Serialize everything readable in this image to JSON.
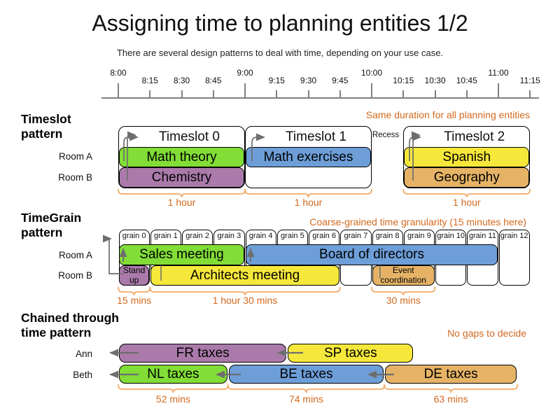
{
  "title": "Assigning time to planning entities 1/2",
  "subtitle": "There are several design patterns to deal with time, depending on your use case.",
  "colors": {
    "green": "#82dd36",
    "blue": "#6d9ed8",
    "yellow": "#f6e83b",
    "purple": "#aa7aaa",
    "tan": "#e6b366",
    "annotation": "#d2691e",
    "brace": "#f2a965",
    "arrow": "#6e6e6e",
    "axis": "#808080"
  },
  "axis": {
    "ticks": [
      {
        "label": "8:00",
        "min": 0,
        "major": true
      },
      {
        "label": "8:15",
        "min": 15,
        "major": false
      },
      {
        "label": "8:30",
        "min": 30,
        "major": false
      },
      {
        "label": "8:45",
        "min": 45,
        "major": false
      },
      {
        "label": "9:00",
        "min": 60,
        "major": true
      },
      {
        "label": "9:15",
        "min": 75,
        "major": false
      },
      {
        "label": "9:30",
        "min": 90,
        "major": false
      },
      {
        "label": "9:45",
        "min": 105,
        "major": false
      },
      {
        "label": "10:00",
        "min": 120,
        "major": true
      },
      {
        "label": "10:15",
        "min": 135,
        "major": false
      },
      {
        "label": "10:30",
        "min": 150,
        "major": false
      },
      {
        "label": "10:45",
        "min": 165,
        "major": false
      },
      {
        "label": "11:00",
        "min": 180,
        "major": true
      },
      {
        "label": "11:15",
        "min": 195,
        "major": false
      }
    ]
  },
  "sections": {
    "timeslot": {
      "heading_lines": [
        "Timeslot",
        "pattern"
      ],
      "annotation": "Same duration for all planning entities",
      "rows": [
        "Room A",
        "Room B"
      ],
      "recess_label": "Recess",
      "slots": [
        {
          "label": "Timeslot 0",
          "start": 0,
          "minutes": 60
        },
        {
          "label": "Timeslot 1",
          "start": 60,
          "minutes": 60
        },
        {
          "label": "Timeslot 2",
          "start": 135,
          "minutes": 60
        }
      ],
      "events": [
        {
          "label": "Math theory",
          "row": 0,
          "start": 0,
          "minutes": 60,
          "color": "green"
        },
        {
          "label": "Math exercises",
          "row": 0,
          "start": 60,
          "minutes": 60,
          "color": "blue"
        },
        {
          "label": "Spanish",
          "row": 0,
          "start": 135,
          "minutes": 60,
          "color": "yellow"
        },
        {
          "label": "Chemistry",
          "row": 1,
          "start": 0,
          "minutes": 60,
          "color": "purple"
        },
        {
          "label": "Geography",
          "row": 1,
          "start": 135,
          "minutes": 60,
          "color": "tan"
        }
      ],
      "durations": [
        {
          "label": "1 hour",
          "start": 0,
          "minutes": 60
        },
        {
          "label": "1 hour",
          "start": 60,
          "minutes": 60
        },
        {
          "label": "1 hour",
          "start": 135,
          "minutes": 60
        }
      ]
    },
    "timegrain": {
      "heading_lines": [
        "TimeGrain",
        "pattern"
      ],
      "annotation": "Coarse-grained time granularity (15 minutes here)",
      "rows": [
        "Room A",
        "Room B"
      ],
      "grains": [
        "grain 0",
        "grain 1",
        "grain 2",
        "grain 3",
        "grain 4",
        "grain 5",
        "grain 6",
        "grain 7",
        "grain 8",
        "grain 9",
        "grain 10",
        "grain 11",
        "grain 12"
      ],
      "events": [
        {
          "label": "Sales meeting",
          "row": 0,
          "start": 0,
          "minutes": 60,
          "color": "green"
        },
        {
          "label": "Board of directors",
          "row": 0,
          "start": 60,
          "minutes": 120,
          "color": "blue"
        },
        {
          "label": "Stand\nup",
          "row": 1,
          "start": 0,
          "minutes": 15,
          "color": "purple",
          "small": true
        },
        {
          "label": "Architects meeting",
          "row": 1,
          "start": 15,
          "minutes": 90,
          "color": "yellow"
        },
        {
          "label": "Event\ncoordination",
          "row": 1,
          "start": 120,
          "minutes": 30,
          "color": "tan",
          "small": true
        }
      ],
      "durations": [
        {
          "label": "15 mins",
          "start": 0,
          "minutes": 15
        },
        {
          "label": "1 hour 30 mins",
          "start": 15,
          "minutes": 90
        },
        {
          "label": "30 mins",
          "start": 120,
          "minutes": 30
        }
      ]
    },
    "chained": {
      "heading_lines": [
        "Chained through",
        "time pattern"
      ],
      "annotation": "No gaps to decide",
      "rows": [
        "Ann",
        "Beth"
      ],
      "events": [
        {
          "label": "FR taxes",
          "row": 0,
          "start": 0,
          "minutes": 80,
          "color": "purple"
        },
        {
          "label": "SP taxes",
          "row": 0,
          "start": 80,
          "minutes": 60,
          "color": "yellow"
        },
        {
          "label": "NL taxes",
          "row": 1,
          "start": 0,
          "minutes": 52,
          "color": "green"
        },
        {
          "label": "BE taxes",
          "row": 1,
          "start": 52,
          "minutes": 74,
          "color": "blue"
        },
        {
          "label": "DE taxes",
          "row": 1,
          "start": 126,
          "minutes": 63,
          "color": "tan"
        }
      ],
      "durations": [
        {
          "label": "52 mins",
          "start": 0,
          "minutes": 52
        },
        {
          "label": "74 mins",
          "start": 52,
          "minutes": 74
        },
        {
          "label": "63 mins",
          "start": 126,
          "minutes": 63
        }
      ]
    }
  }
}
